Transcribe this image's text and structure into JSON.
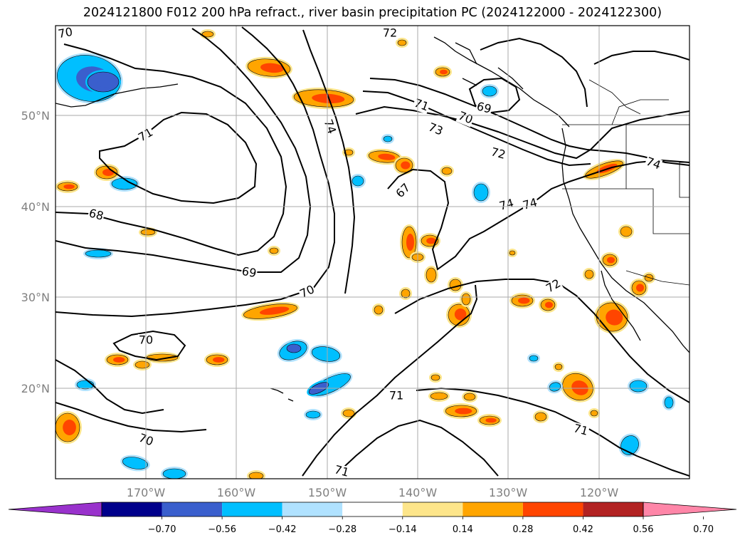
{
  "title": "2024121800 F012 200 hPa refract., river basin precipitation PC (2024122000 - 2024122300)",
  "map": {
    "lat_labels": [
      "50°N",
      "40°N",
      "30°N",
      "20°N"
    ],
    "lon_labels": [
      "170°W",
      "160°W",
      "150°W",
      "140°W",
      "130°W",
      "120°W"
    ],
    "gridlines": true
  },
  "contour_labels": [
    "70",
    "72",
    "71",
    "69",
    "70",
    "73",
    "72",
    "74",
    "67",
    "71",
    "74",
    "74",
    "74",
    "68",
    "69",
    "70",
    "72",
    "70",
    "71",
    "71",
    "70",
    "71"
  ],
  "colorbar": {
    "ticks": [
      "−0.70",
      "−0.56",
      "−0.42",
      "−0.28",
      "−0.14",
      "0.14",
      "0.28",
      "0.42",
      "0.56",
      "0.70"
    ],
    "colors": [
      "#9932cc",
      "#00008b",
      "#3a5fcd",
      "#00bfff",
      "#b0e2ff",
      "#ffffff",
      "#fde58a",
      "#ffa500",
      "#ff4500",
      "#b22222",
      "#ff86a8"
    ],
    "extend": "both"
  },
  "field_colors": {
    "neg_dark": "#3a5fcd",
    "neg_mid": "#00bfff",
    "neg_light": "#b0e2ff",
    "pos_light": "#fde58a",
    "pos_mid": "#ffa500",
    "pos_strong": "#ff4500"
  }
}
